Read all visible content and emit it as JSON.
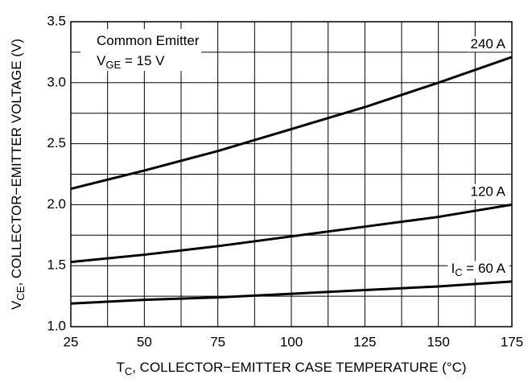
{
  "chart_data": {
    "type": "line",
    "annotation": [
      [
        {
          "text": "Common Emitter"
        }
      ],
      [
        {
          "text": "V"
        },
        {
          "text": "GE",
          "sub": true
        },
        {
          "text": " = 15 V"
        }
      ]
    ],
    "xlabel": [
      {
        "text": "T"
      },
      {
        "text": "C",
        "sub": true
      },
      {
        "text": ", COLLECTOR−EMITTER CASE TEMPERATURE (°C)"
      }
    ],
    "ylabel": [
      {
        "text": "V"
      },
      {
        "text": "CE",
        "sub": true
      },
      {
        "text": ", COLLECTOR−EMITTER VOLTAGE (V)"
      }
    ],
    "x": [
      25,
      50,
      75,
      100,
      125,
      150,
      175
    ],
    "series": [
      {
        "label": [
          {
            "text": "240 A"
          }
        ],
        "color": "#000000",
        "values": [
          2.13,
          2.28,
          2.44,
          2.62,
          2.8,
          3.0,
          3.21
        ]
      },
      {
        "label": [
          {
            "text": "120 A"
          }
        ],
        "color": "#000000",
        "values": [
          1.53,
          1.59,
          1.66,
          1.74,
          1.82,
          1.9,
          2.0
        ]
      },
      {
        "label": [
          {
            "text": "I"
          },
          {
            "text": "C",
            "sub": true
          },
          {
            "text": " = 60 A"
          }
        ],
        "color": "#000000",
        "values": [
          1.19,
          1.22,
          1.24,
          1.27,
          1.3,
          1.33,
          1.37
        ]
      }
    ],
    "xlim": [
      25,
      175
    ],
    "ylim": [
      1,
      3.5
    ],
    "xticks": [
      25,
      50,
      75,
      100,
      125,
      150,
      175
    ],
    "yticks": [
      {
        "value": 1,
        "label": "1.0"
      },
      1.5,
      {
        "value": 2,
        "label": "2.0"
      },
      2.5,
      {
        "value": 3,
        "label": "3.0"
      },
      3.5
    ],
    "minor_xgrid": [
      37.5,
      62.5,
      87.5,
      112.5,
      137.5,
      162.5
    ],
    "minor_ygrid": [
      1.25,
      1.75,
      2.25,
      2.75,
      3.25
    ],
    "grid": true
  }
}
